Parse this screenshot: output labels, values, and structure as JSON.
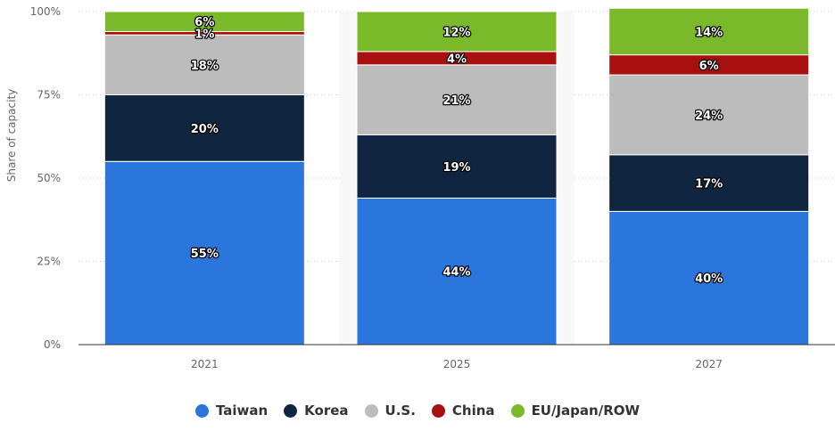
{
  "chart_data": {
    "type": "bar",
    "stacked": true,
    "categories": [
      "2021",
      "2025",
      "2027"
    ],
    "series": [
      {
        "name": "Taiwan",
        "values": [
          55,
          44,
          40
        ],
        "color": "#2a76dd",
        "labels": [
          "55%",
          "44%",
          "40%"
        ]
      },
      {
        "name": "Korea",
        "values": [
          20,
          19,
          17
        ],
        "color": "#10253f",
        "labels": [
          "20%",
          "19%",
          "17%"
        ]
      },
      {
        "name": "U.S.",
        "values": [
          18,
          21,
          24
        ],
        "color": "#bcbcbc",
        "labels": [
          "18%",
          "21%",
          "24%"
        ]
      },
      {
        "name": "China",
        "values": [
          1,
          4,
          6
        ],
        "color": "#a80f0f",
        "labels": [
          "1%",
          "4%",
          "6%"
        ]
      },
      {
        "name": "EU/Japan/ROW",
        "values": [
          6,
          12,
          14
        ],
        "color": "#7ab929",
        "labels": [
          "6%",
          "12%",
          "14%"
        ]
      }
    ],
    "ylabel": "Share of capacity",
    "xlabel": "",
    "ylim": [
      0,
      100
    ],
    "yticks": [
      "0%",
      "25%",
      "50%",
      "75%",
      "100%"
    ],
    "legend_position": "bottom-center",
    "grid": true
  }
}
